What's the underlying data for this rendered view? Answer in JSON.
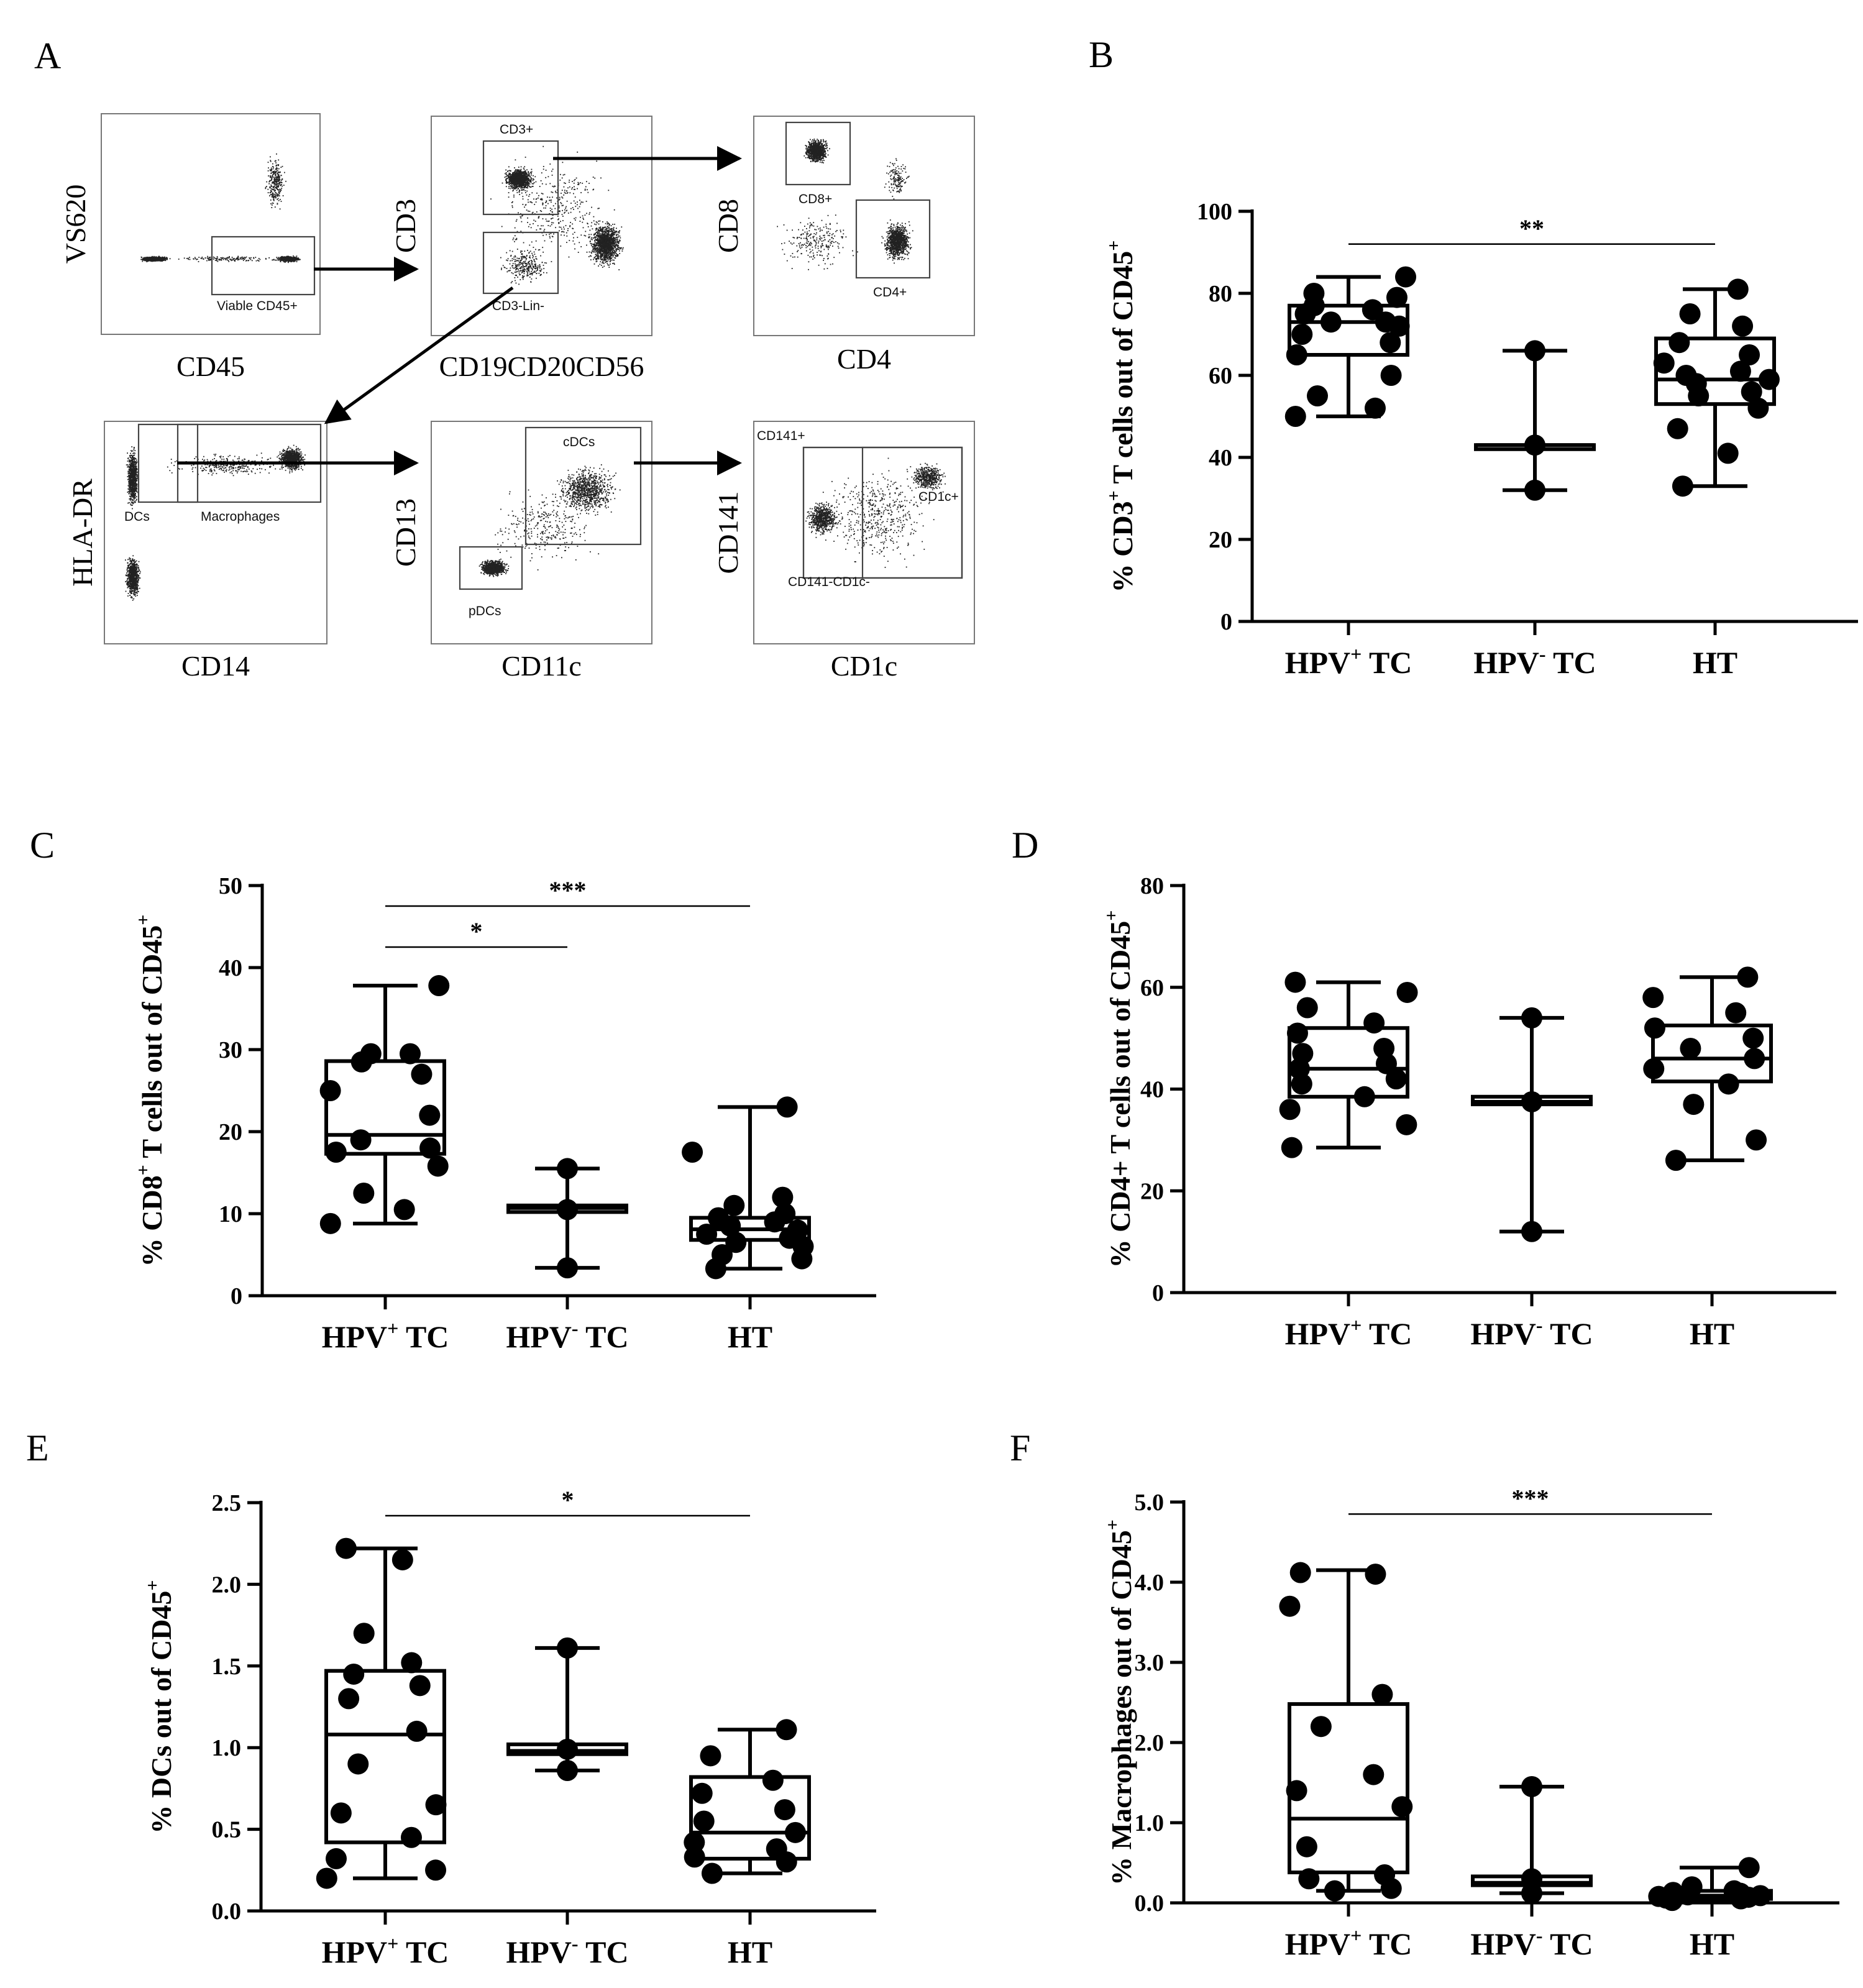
{
  "panels": {
    "A": {
      "letter": "A",
      "plots": [
        {
          "key": "p1",
          "y_label": "VS620",
          "x_label": "CD45",
          "gates": [
            {
              "name": "gate-viable-cd45",
              "label": "Viable CD45+"
            }
          ]
        },
        {
          "key": "p2",
          "y_label": "CD3",
          "x_label": "CD19CD20CD56",
          "gates": [
            {
              "name": "gate-cd3-pos",
              "label": "CD3+"
            },
            {
              "name": "gate-cd3-lin-neg",
              "label": "CD3-Lin-"
            }
          ]
        },
        {
          "key": "p3",
          "y_label": "CD8",
          "x_label": "CD4",
          "gates": [
            {
              "name": "gate-cd8-pos",
              "label": "CD8+"
            },
            {
              "name": "gate-cd4-pos",
              "label": "CD4+"
            }
          ]
        },
        {
          "key": "p4",
          "y_label": "HLA-DR",
          "x_label": "CD14",
          "gates": [
            {
              "name": "gate-dcs",
              "label": "DCs"
            },
            {
              "name": "gate-macrophages",
              "label": "Macrophages"
            }
          ]
        },
        {
          "key": "p5",
          "y_label": "CD13",
          "x_label": "CD11c",
          "gates": [
            {
              "name": "gate-cdcs",
              "label": "cDCs"
            },
            {
              "name": "gate-pdcs",
              "label": "pDCs"
            }
          ]
        },
        {
          "key": "p6",
          "y_label": "CD141",
          "x_label": "CD1c",
          "gates": [
            {
              "name": "gate-cd141-pos",
              "label": "CD141+"
            },
            {
              "name": "gate-cd1c-pos",
              "label": "CD1c+"
            },
            {
              "name": "gate-cd141-cd1c-neg",
              "label": "CD141-CD1c-"
            }
          ]
        }
      ]
    }
  },
  "chart_data": [
    {
      "panel": "B",
      "type": "box",
      "ylim": [
        0,
        100
      ],
      "yticks": [
        0,
        20,
        40,
        60,
        80,
        100
      ],
      "ylabel": {
        "pre": "% CD3",
        "sup": "+",
        "mid": " T cells out of CD45",
        "sup2": "+"
      },
      "categories": [
        {
          "main": "HPV",
          "sup": "+",
          "tail": " TC"
        },
        {
          "main": "HPV",
          "sup": "-",
          "tail": " TC"
        },
        {
          "main": "HT",
          "sup": "",
          "tail": ""
        }
      ],
      "groups": [
        {
          "box": {
            "min": 50,
            "q1": 65,
            "median": 73,
            "q3": 77,
            "max": 84
          },
          "points": [
            50,
            52,
            55,
            60,
            65,
            68,
            70,
            72,
            73,
            73,
            75,
            76,
            77,
            79,
            80,
            84
          ]
        },
        {
          "box": {
            "min": 32,
            "q1": 42,
            "median": 43,
            "q3": 43,
            "max": 66
          },
          "points": [
            32,
            43,
            66
          ]
        },
        {
          "box": {
            "min": 33,
            "q1": 53,
            "median": 59,
            "q3": 69,
            "max": 81
          },
          "points": [
            33,
            41,
            47,
            52,
            55,
            56,
            58,
            59,
            60,
            61,
            63,
            65,
            68,
            72,
            75,
            81
          ]
        }
      ],
      "significance": [
        {
          "from": 0,
          "to": 2,
          "label": "**",
          "y": 92
        }
      ]
    },
    {
      "panel": "C",
      "type": "box",
      "ylim": [
        0,
        50
      ],
      "yticks": [
        0,
        10,
        20,
        30,
        40,
        50
      ],
      "ylabel": {
        "pre": "% CD8",
        "sup": "+",
        "mid": " T cells out of CD45",
        "sup2": "+"
      },
      "categories": [
        {
          "main": "HPV",
          "sup": "+",
          "tail": " TC"
        },
        {
          "main": "HPV",
          "sup": "-",
          "tail": " TC"
        },
        {
          "main": "HT",
          "sup": "",
          "tail": ""
        }
      ],
      "groups": [
        {
          "box": {
            "min": 8.8,
            "q1": 17.3,
            "median": 19.6,
            "q3": 28.6,
            "max": 37.8
          },
          "points": [
            8.8,
            10.5,
            12.5,
            15.8,
            17.5,
            18,
            19,
            22,
            25,
            27,
            28.5,
            29.5,
            29.5,
            37.8
          ]
        },
        {
          "box": {
            "min": 3.4,
            "q1": 10.2,
            "median": 10.7,
            "q3": 11.0,
            "max": 15.5
          },
          "points": [
            3.4,
            10.5,
            15.5
          ]
        },
        {
          "box": {
            "min": 3.3,
            "q1": 6.8,
            "median": 8.1,
            "q3": 9.5,
            "max": 23
          },
          "points": [
            3.3,
            4.5,
            5,
            6,
            6.5,
            7,
            7.5,
            8,
            8.5,
            9,
            9.5,
            10,
            11,
            12,
            17.5,
            23
          ]
        }
      ],
      "significance": [
        {
          "from": 0,
          "to": 2,
          "label": "***",
          "y": 47.5
        },
        {
          "from": 0,
          "to": 1,
          "label": "*",
          "y": 42.5
        }
      ]
    },
    {
      "panel": "D",
      "type": "box",
      "ylim": [
        0,
        80
      ],
      "yticks": [
        0,
        20,
        40,
        60,
        80
      ],
      "ylabel": {
        "pre": "% CD4+ T cells out of CD45",
        "sup": "+",
        "mid": "",
        "sup2": ""
      },
      "categories": [
        {
          "main": "HPV",
          "sup": "+",
          "tail": " TC"
        },
        {
          "main": "HPV",
          "sup": "-",
          "tail": " TC"
        },
        {
          "main": "HT",
          "sup": "",
          "tail": ""
        }
      ],
      "groups": [
        {
          "box": {
            "min": 28.5,
            "q1": 38.5,
            "median": 44,
            "q3": 52,
            "max": 61
          },
          "points": [
            28.5,
            33,
            36,
            38.5,
            41,
            42,
            44,
            45,
            47,
            48,
            51,
            53,
            56,
            59,
            61
          ]
        },
        {
          "box": {
            "min": 12,
            "q1": 37,
            "median": 37.5,
            "q3": 38.5,
            "max": 54
          },
          "points": [
            12,
            37.5,
            54
          ]
        },
        {
          "box": {
            "min": 26,
            "q1": 41.5,
            "median": 46,
            "q3": 52.5,
            "max": 62
          },
          "points": [
            26,
            30,
            37,
            41,
            44,
            46,
            48,
            50,
            52,
            55,
            58,
            62
          ]
        }
      ],
      "significance": []
    },
    {
      "panel": "E",
      "type": "box",
      "ylim": [
        0,
        2.5
      ],
      "yticks": [
        0.0,
        0.5,
        1.0,
        1.5,
        2.0,
        2.5
      ],
      "ytick_labels": [
        "0.0",
        "0.5",
        "1.0",
        "1.5",
        "2.0",
        "2.5"
      ],
      "ylabel": {
        "pre": "% DCs out of  CD45",
        "sup": "+",
        "mid": "",
        "sup2": ""
      },
      "categories": [
        {
          "main": "HPV",
          "sup": "+",
          "tail": " TC"
        },
        {
          "main": "HPV",
          "sup": "-",
          "tail": " TC"
        },
        {
          "main": "HT",
          "sup": "",
          "tail": ""
        }
      ],
      "groups": [
        {
          "box": {
            "min": 0.2,
            "q1": 0.42,
            "median": 1.08,
            "q3": 1.47,
            "max": 2.22
          },
          "points": [
            0.2,
            0.25,
            0.32,
            0.45,
            0.6,
            0.65,
            0.9,
            1.1,
            1.3,
            1.38,
            1.45,
            1.52,
            1.7,
            2.15,
            2.22
          ]
        },
        {
          "box": {
            "min": 0.86,
            "q1": 0.96,
            "median": 0.98,
            "q3": 1.02,
            "max": 1.61
          },
          "points": [
            0.86,
            0.99,
            1.61
          ]
        },
        {
          "box": {
            "min": 0.23,
            "q1": 0.32,
            "median": 0.48,
            "q3": 0.82,
            "max": 1.11
          },
          "points": [
            0.23,
            0.3,
            0.33,
            0.38,
            0.42,
            0.48,
            0.55,
            0.62,
            0.72,
            0.8,
            0.95,
            1.11
          ]
        }
      ],
      "significance": [
        {
          "from": 0,
          "to": 2,
          "label": "*",
          "y": 2.42
        }
      ]
    },
    {
      "panel": "F",
      "type": "box",
      "ylim": [
        0,
        5
      ],
      "yticks": [
        0,
        1,
        2,
        3,
        4,
        5
      ],
      "ytick_labels": [
        "0.0",
        "1.0",
        "2.0",
        "3.0",
        "4.0",
        "5.0"
      ],
      "ylabel": {
        "pre": "% Macrophages out of CD45",
        "sup": "+",
        "mid": "",
        "sup2": ""
      },
      "categories": [
        {
          "main": "HPV",
          "sup": "+",
          "tail": " TC"
        },
        {
          "main": "HPV",
          "sup": "-",
          "tail": " TC"
        },
        {
          "main": "HT",
          "sup": "",
          "tail": ""
        }
      ],
      "groups": [
        {
          "box": {
            "min": 0.15,
            "q1": 0.38,
            "median": 1.05,
            "q3": 2.48,
            "max": 4.15
          },
          "points": [
            0.15,
            0.18,
            0.3,
            0.35,
            0.7,
            1.2,
            1.4,
            1.6,
            2.2,
            2.6,
            3.7,
            4.1,
            4.12
          ]
        },
        {
          "box": {
            "min": 0.12,
            "q1": 0.22,
            "median": 0.25,
            "q3": 0.33,
            "max": 1.45
          },
          "points": [
            0.12,
            0.3,
            1.45
          ]
        },
        {
          "box": {
            "min": 0.03,
            "q1": 0.05,
            "median": 0.09,
            "q3": 0.15,
            "max": 0.44
          },
          "points": [
            0.03,
            0.05,
            0.06,
            0.07,
            0.08,
            0.09,
            0.1,
            0.12,
            0.13,
            0.15,
            0.2,
            0.44
          ]
        }
      ],
      "significance": [
        {
          "from": 0,
          "to": 2,
          "label": "***",
          "y": 4.85
        }
      ]
    }
  ]
}
